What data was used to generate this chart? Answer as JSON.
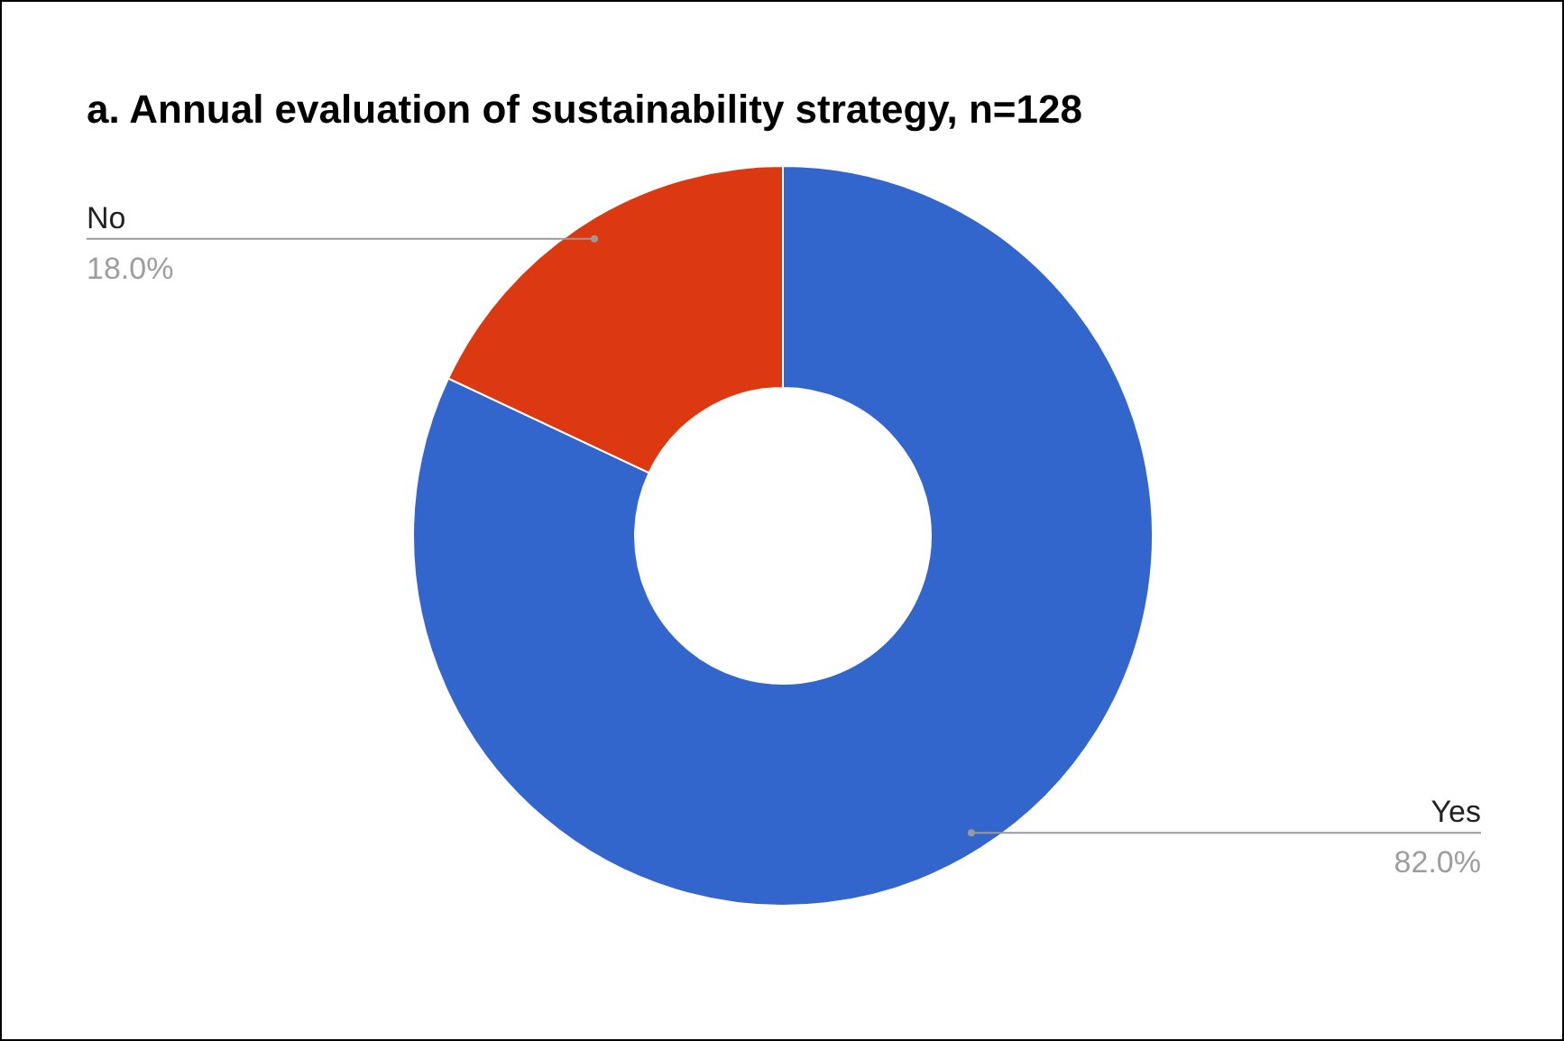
{
  "chart_data": {
    "type": "donut",
    "title": "a. Annual evaluation of sustainability strategy, n=128",
    "categories": [
      "Yes",
      "No"
    ],
    "values": [
      82,
      18
    ],
    "colors": [
      "#3366cc",
      "#dc3912"
    ],
    "value_labels": [
      "82.0%",
      "18.0%"
    ]
  }
}
